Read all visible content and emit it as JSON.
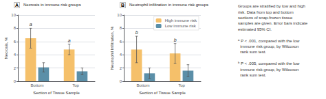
{
  "chart_data": [
    {
      "type": "bar",
      "panel_label": "A",
      "title": "Necrosis in immune risk groups",
      "xlabel": "Section of Tissue Sample",
      "ylabel": "Necrosis, %",
      "categories": [
        "Bottom",
        "Top"
      ],
      "series": [
        {
          "name": "High immune risk",
          "color": "#F5C06A",
          "values": [
            6.5,
            4.8
          ],
          "errors": [
            1.5,
            0.8
          ],
          "annotations": [
            "a",
            "a"
          ]
        },
        {
          "name": "Low immune risk",
          "color": "#5B8FA8",
          "values": [
            2.1,
            1.5
          ],
          "errors": [
            0.7,
            0.5
          ]
        }
      ],
      "ylim": [
        0,
        10
      ],
      "yticks": [
        0,
        2,
        4,
        6,
        8,
        10
      ],
      "grid": true
    },
    {
      "type": "bar",
      "panel_label": "B",
      "title": "Neutrophil infiltration in immune risk groups",
      "xlabel": "Section of Tissue Sample",
      "ylabel": "Neutrophil Infiltration, %",
      "categories": [
        "Bottom",
        "Top"
      ],
      "series": [
        {
          "name": "High immune risk",
          "color": "#F5C06A",
          "values": [
            4.8,
            4.2
          ],
          "errors": [
            2.0,
            1.5
          ],
          "annotations": [
            "b",
            "b"
          ]
        },
        {
          "name": "Low immune risk",
          "color": "#5B8FA8",
          "values": [
            1.2,
            1.6
          ],
          "errors": [
            0.8,
            0.9
          ]
        }
      ],
      "ylim": [
        0,
        10
      ],
      "yticks": [
        0,
        2,
        4,
        6,
        8,
        10
      ],
      "grid": true,
      "legend": "upper right"
    }
  ],
  "footnote": [
    [
      "Groups are stratified by low and high",
      "risk. Data from top and bottom",
      "sections of snap-frozen tissue",
      "samples are given. Error bars indicate",
      "estimated 95% CI."
    ],
    [
      "ᵃ P < .001, compared with the low",
      "  immune risk group, by Wilcoxon",
      "  rank sum test."
    ],
    [
      "ᵇ P < .005, compared with the low",
      "  immune risk group, by Wilcoxon",
      "  rank sum test."
    ]
  ]
}
